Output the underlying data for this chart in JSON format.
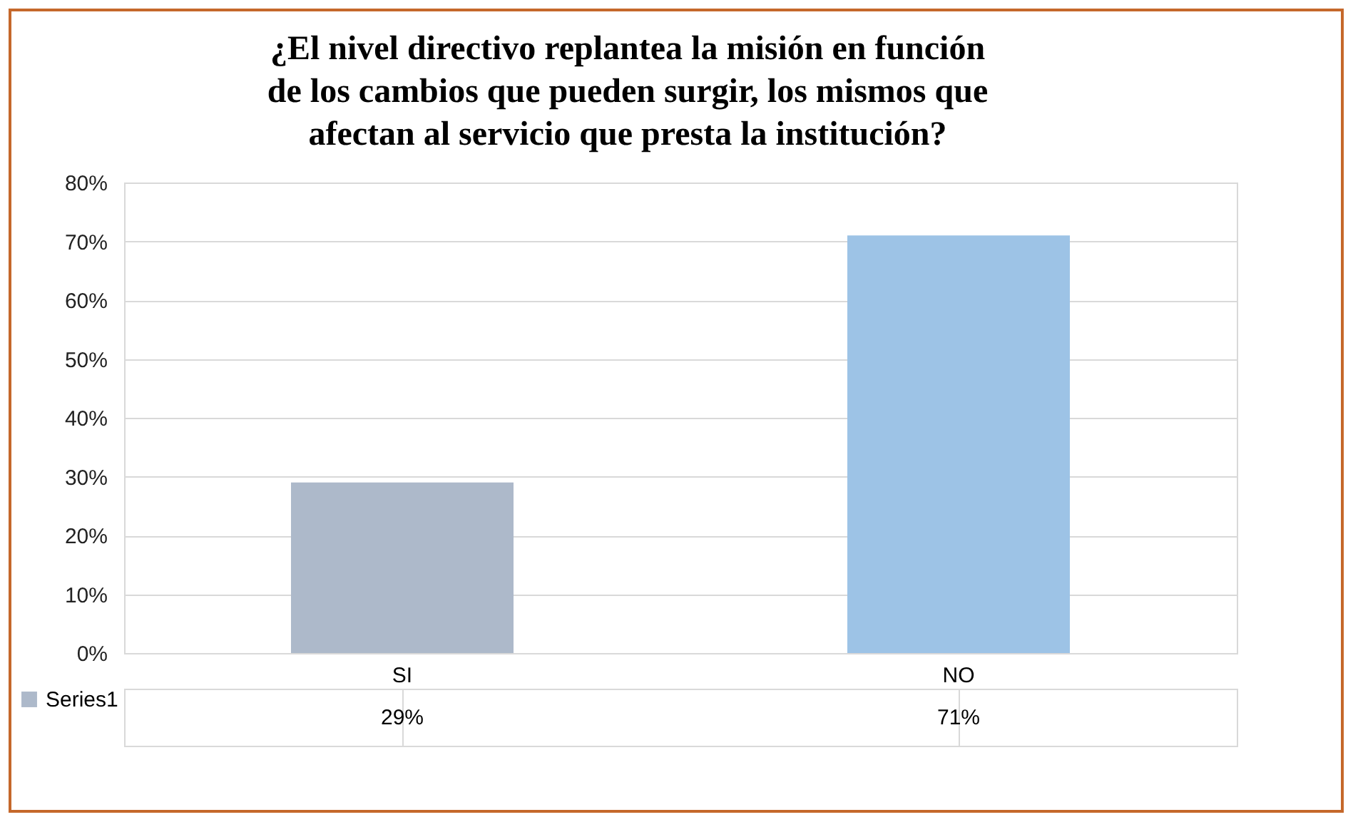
{
  "chart_data": {
    "type": "bar",
    "title": "¿El nivel directivo replantea la misión en función de los cambios que pueden surgir, los mismos que afectan al servicio que presta la institución?",
    "categories": [
      "SI",
      "NO"
    ],
    "series": [
      {
        "name": "Series1",
        "values": [
          29,
          71
        ],
        "value_labels": [
          "29%",
          "71%"
        ]
      }
    ],
    "colors": [
      "#adb9ca",
      "#9dc3e6"
    ],
    "ylim": [
      0,
      80
    ],
    "yticks": [
      {
        "value": 0,
        "label": "0%"
      },
      {
        "value": 10,
        "label": "10%"
      },
      {
        "value": 20,
        "label": "20%"
      },
      {
        "value": 30,
        "label": "30%"
      },
      {
        "value": 40,
        "label": "40%"
      },
      {
        "value": 50,
        "label": "50%"
      },
      {
        "value": 60,
        "label": "60%"
      },
      {
        "value": 70,
        "label": "70%"
      },
      {
        "value": 80,
        "label": "80%"
      }
    ],
    "grid": "y"
  }
}
